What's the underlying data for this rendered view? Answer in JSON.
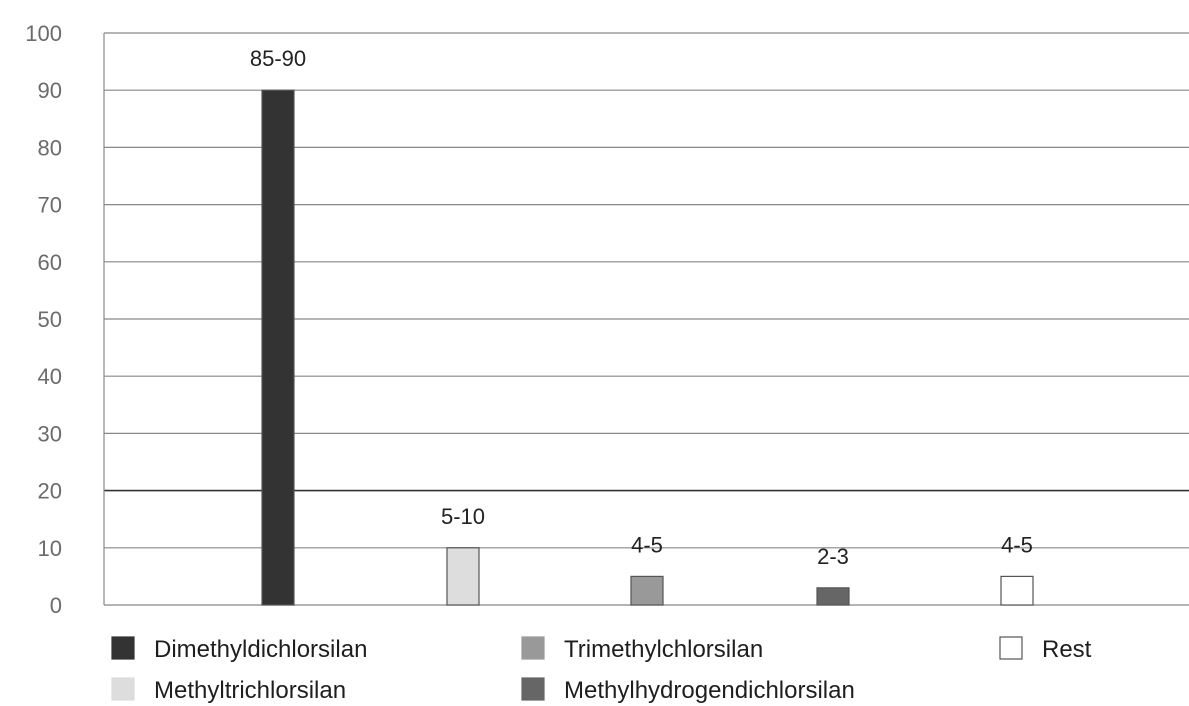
{
  "chart_data": {
    "type": "bar",
    "categories": [
      "Dimethyldichlorsilan",
      "Methyltrichlorsilan",
      "Trimethylchlorsilan",
      "Methylhydrogendichlorsilan",
      "Rest"
    ],
    "values": [
      90,
      10,
      5,
      3,
      5
    ],
    "data_labels": [
      "85-90",
      "5-10",
      "4-5",
      "2-3",
      "4-5"
    ],
    "colors": [
      "#333333",
      "#dddddd",
      "#999999",
      "#666666",
      "#ffffff"
    ],
    "ylim": [
      0,
      100
    ],
    "yticks": [
      "0",
      "10",
      "20",
      "30",
      "40",
      "50",
      "60",
      "70",
      "80",
      "90",
      "100"
    ],
    "grid": true,
    "legend": {
      "placement": "bottom",
      "entries": [
        "Dimethyldichlorsilan",
        "Trimethylchlorsilan",
        "Rest",
        "Methyltrichlorsilan",
        "Methylhydrogendichlorsilan"
      ]
    }
  }
}
